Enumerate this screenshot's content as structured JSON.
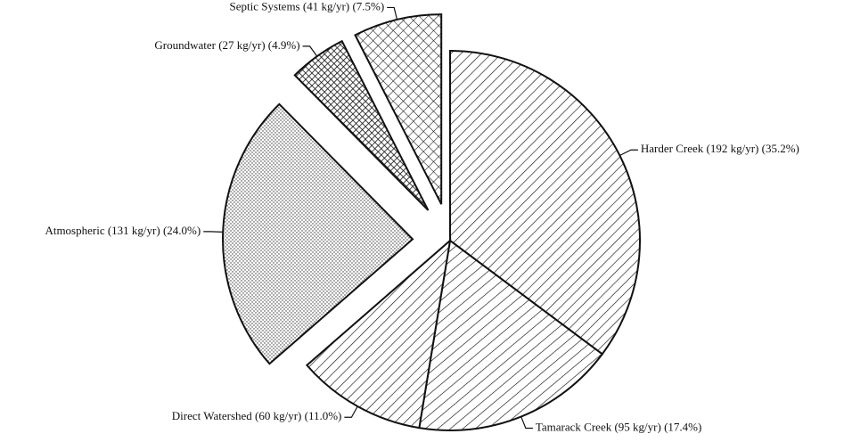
{
  "chart_data": {
    "type": "pie",
    "categories": [
      "Harder Creek (192 kg/yr) (35.2%)",
      "Tamarack Creek (95 kg/yr) (17.4%)",
      "Direct Watershed (60 kg/yr) (11.0%)",
      "Atmospheric (131 kg/yr) (24.0%)",
      "Groundwater (27 kg/yr) (4.9%)",
      "Septic Systems (41 kg/yr) (7.5%)"
    ],
    "values": [
      35.2,
      17.4,
      11.0,
      24.0,
      4.9,
      7.5
    ],
    "patterns": [
      "hatch-right",
      "hatch-right-wide",
      "hatch-right",
      "dots",
      "cross-dense",
      "cross"
    ],
    "exploded": [
      false,
      false,
      false,
      true,
      true,
      true
    ]
  }
}
